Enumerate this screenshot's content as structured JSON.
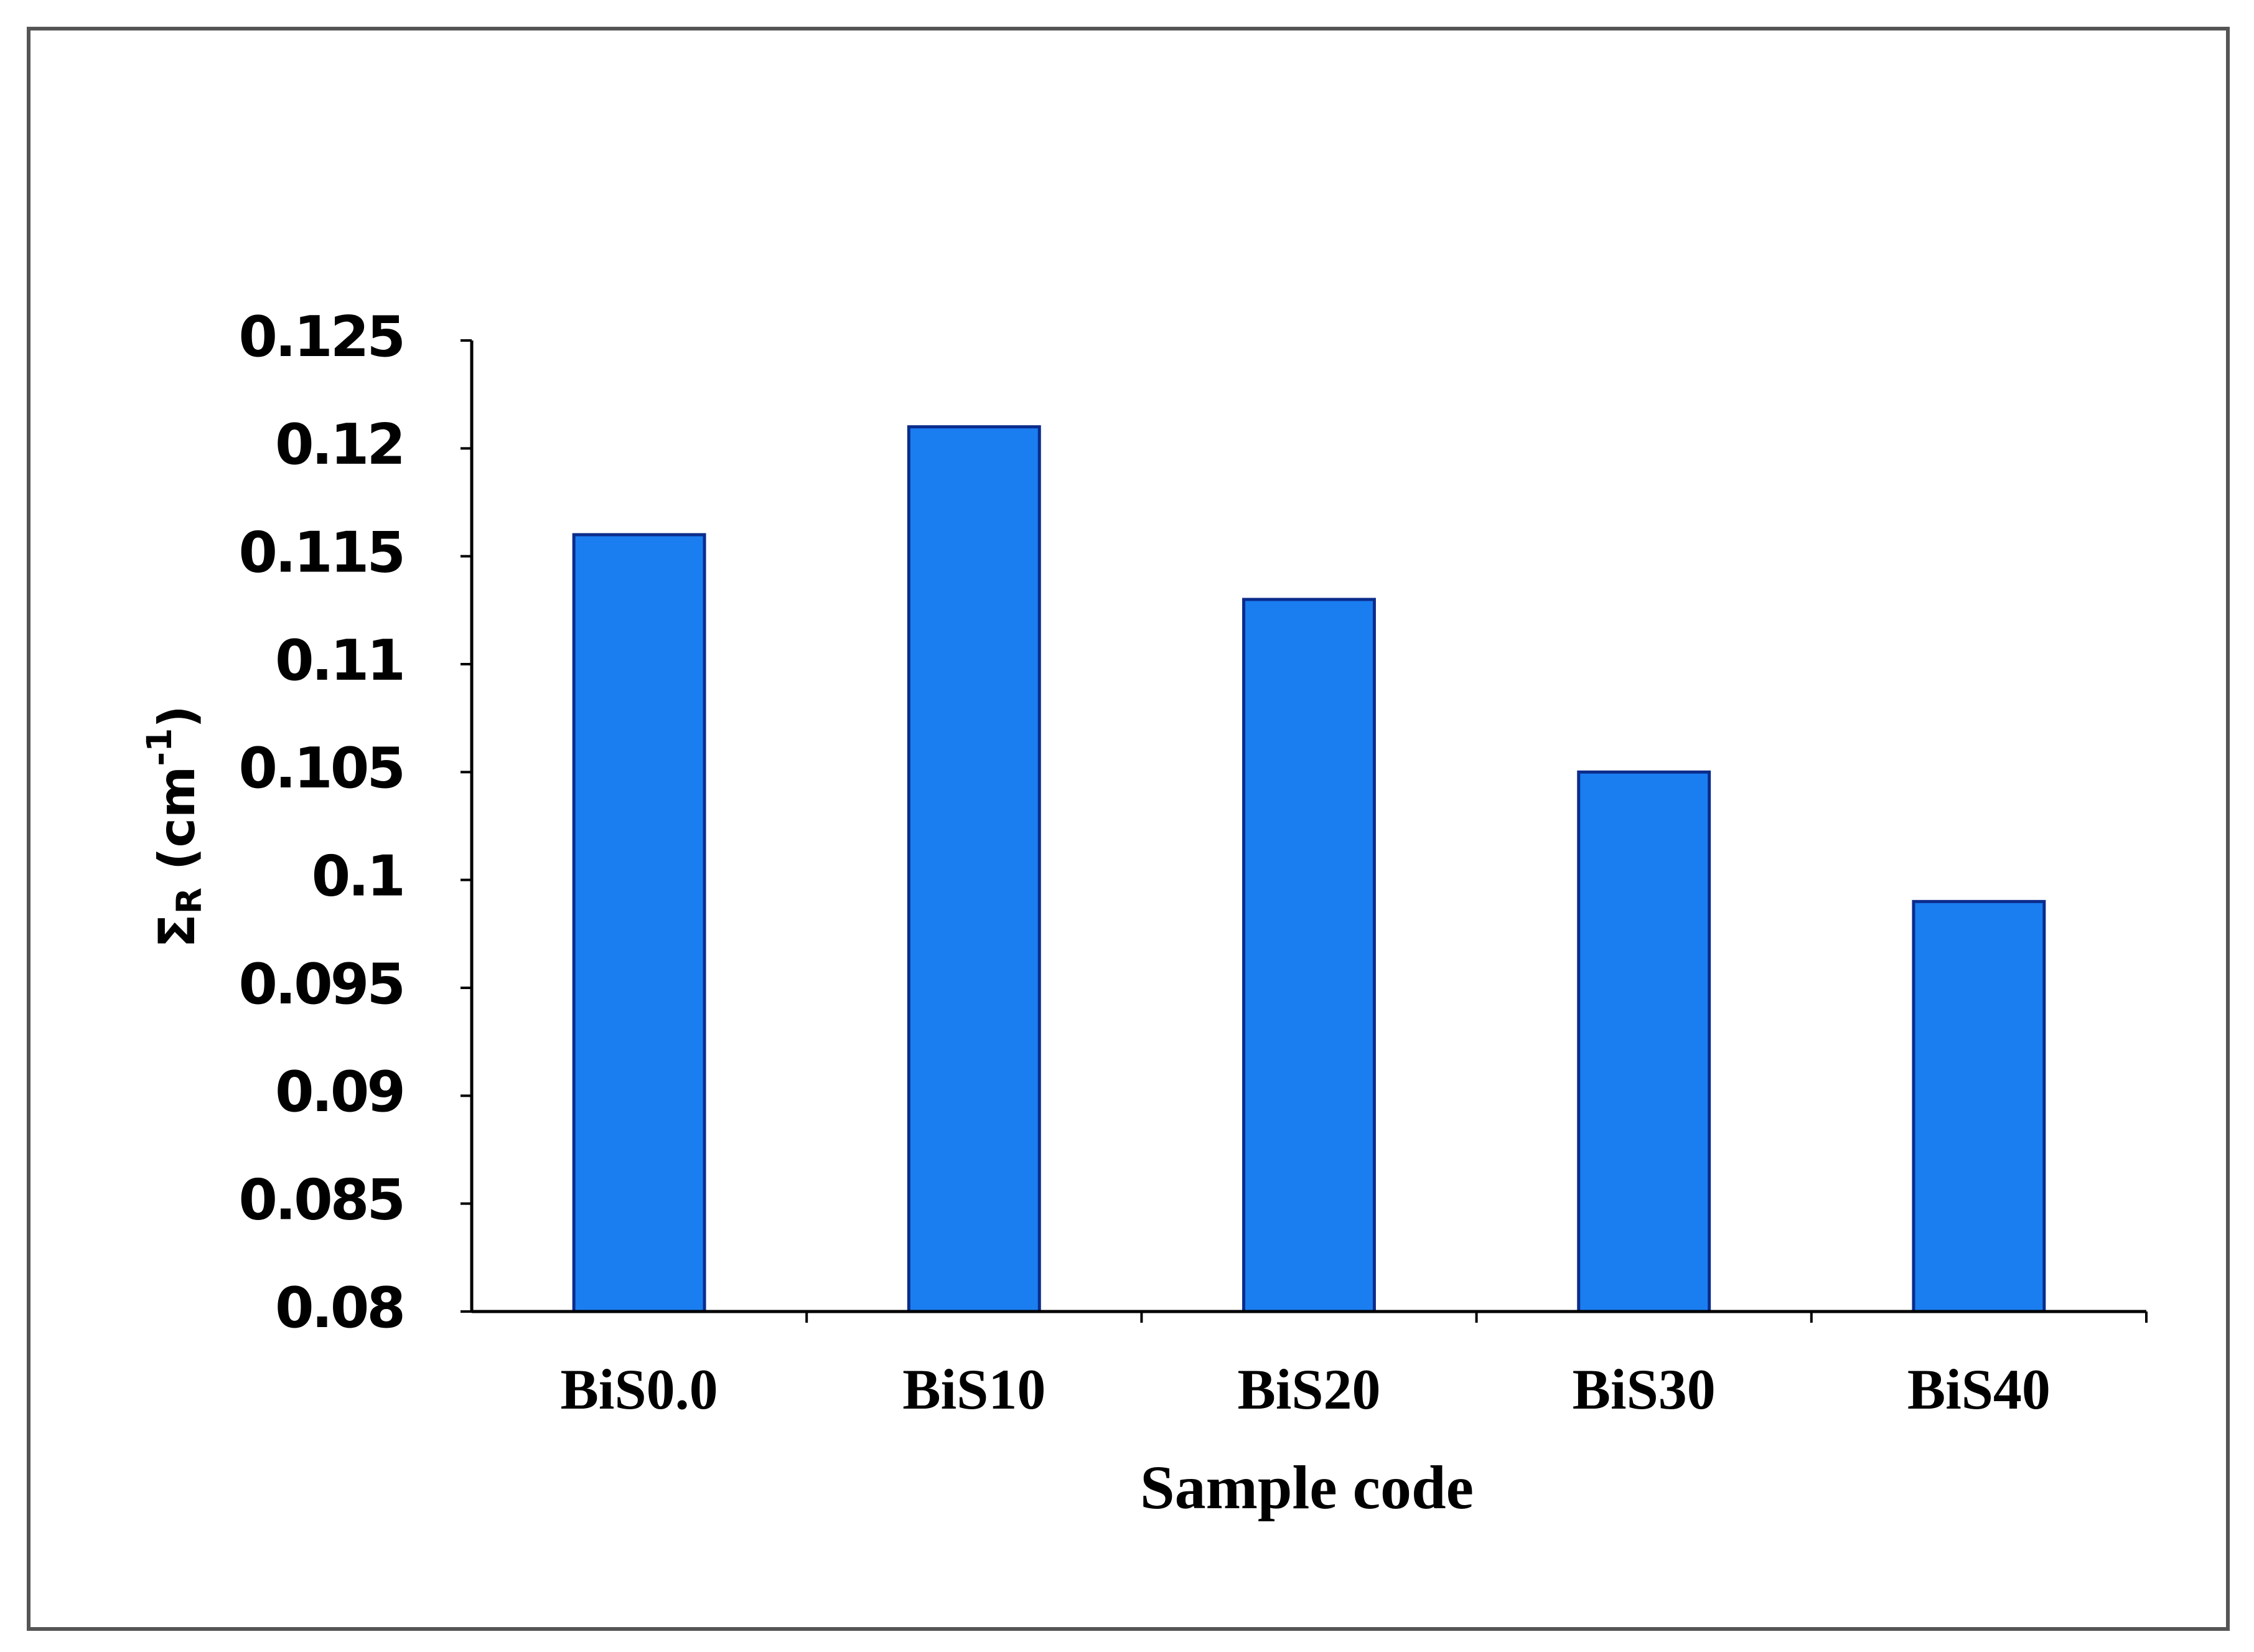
{
  "chart_data": {
    "type": "bar",
    "ylabel": [
      "Σ",
      "R",
      " (cm",
      "-1",
      ")"
    ],
    "xlabel": "Sample code",
    "categories": [
      "BiS0.0",
      "BiS10",
      "BiS20",
      "BiS30",
      "BiS40"
    ],
    "values": [
      0.116,
      0.121,
      0.113,
      0.105,
      0.099
    ],
    "color": "#1a7ef0",
    "ylim": [
      0.08,
      0.125
    ],
    "yticks": [
      0.08,
      0.085,
      0.09,
      0.095,
      0.1,
      0.105,
      0.11,
      0.115,
      0.12,
      0.125
    ],
    "grid": false
  }
}
